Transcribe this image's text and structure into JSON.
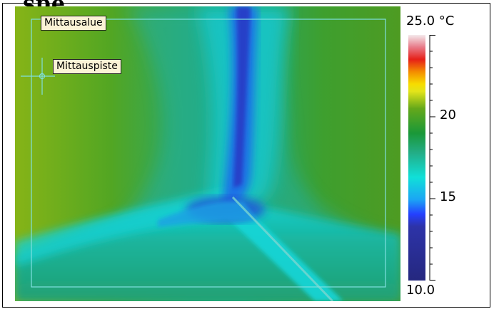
{
  "header": {
    "title_fragment": "spe"
  },
  "thermal_image": {
    "measurement_area_label": "Mittausalue",
    "measurement_point_label": "Mittauspiste",
    "frame_color": "#7fe0e0"
  },
  "scale": {
    "max_label": "25.0 °C",
    "min_label": "10.0",
    "ticks": [
      {
        "value": 20,
        "label": "20"
      },
      {
        "value": 15,
        "label": "15"
      }
    ],
    "range": [
      10.0,
      25.0
    ],
    "palette": [
      "#252a86",
      "#2a2fa8",
      "#3050ff",
      "#1db8f0",
      "#13e1d6",
      "#24b08c",
      "#1b9a3c",
      "#5aa61c",
      "#8fb814",
      "#d9e21a",
      "#f6e400",
      "#f5b000",
      "#f06a00",
      "#e81c18",
      "#e88888",
      "#f3e6e8"
    ]
  }
}
